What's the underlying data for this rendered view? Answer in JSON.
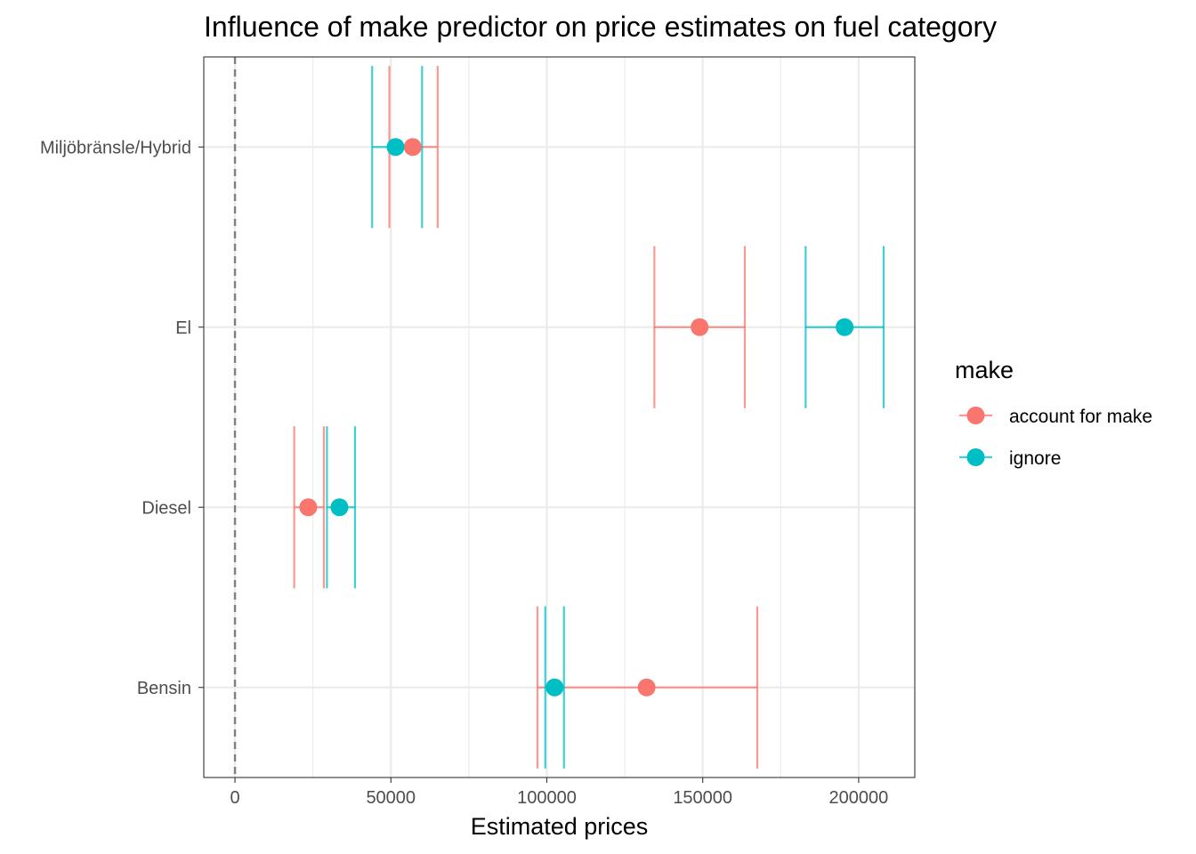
{
  "chart_data": {
    "type": "scatter",
    "subtype": "point-errorbar",
    "title": "Influence of make predictor on price estimates on fuel category",
    "xlabel": "Estimated prices",
    "ylabel": "",
    "xlim": [
      -10000,
      218000
    ],
    "x_ticks": [
      0,
      50000,
      100000,
      150000,
      200000
    ],
    "x_tick_labels": [
      "0",
      "50000",
      "100000",
      "150000",
      "200000"
    ],
    "categories": [
      "Bensin",
      "Diesel",
      "El",
      "Miljöbränsle/Hybrid"
    ],
    "reference_line": {
      "x": 0,
      "style": "dashed"
    },
    "grid": true,
    "legend": {
      "title": "make",
      "placement": "right"
    },
    "series": [
      {
        "name": "account for make",
        "color": "#F8766D",
        "points": [
          {
            "category": "Bensin",
            "estimate": 132000,
            "lower": 97000,
            "upper": 167500
          },
          {
            "category": "Diesel",
            "estimate": 23500,
            "lower": 19000,
            "upper": 28500
          },
          {
            "category": "El",
            "estimate": 149000,
            "lower": 134500,
            "upper": 163500
          },
          {
            "category": "Miljöbränsle/Hybrid",
            "estimate": 57000,
            "lower": 49500,
            "upper": 65000
          }
        ]
      },
      {
        "name": "ignore",
        "color": "#00BFC4",
        "points": [
          {
            "category": "Bensin",
            "estimate": 102500,
            "lower": 99500,
            "upper": 105500
          },
          {
            "category": "Diesel",
            "estimate": 33500,
            "lower": 29500,
            "upper": 38500
          },
          {
            "category": "El",
            "estimate": 195500,
            "lower": 183000,
            "upper": 208000
          },
          {
            "category": "Miljöbränsle/Hybrid",
            "estimate": 51500,
            "lower": 44000,
            "upper": 60000
          }
        ]
      }
    ]
  }
}
